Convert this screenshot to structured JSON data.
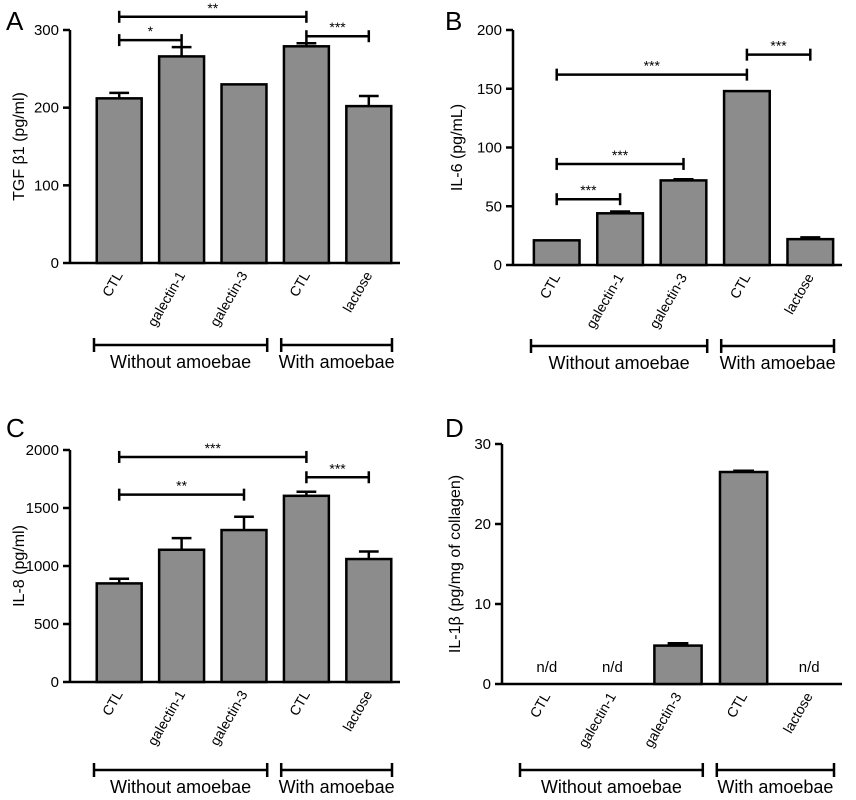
{
  "chart_data": [
    {
      "panel": "A",
      "type": "bar",
      "ylabel": "TGF β1 (pg/ml)",
      "ylim": [
        0,
        300
      ],
      "yticks": [
        "0",
        "100",
        "200",
        "300"
      ],
      "categories": [
        "CTL",
        "galectin-1",
        "galectin-3",
        "CTL",
        "lactose"
      ],
      "values": [
        212,
        266,
        230,
        279,
        202
      ],
      "errors": [
        7,
        12,
        0,
        4,
        13
      ],
      "na_labels": [],
      "groups": [
        {
          "label": "Without amoebae",
          "from": 0,
          "to": 2
        },
        {
          "label": "With amoebae",
          "from": 3,
          "to": 4
        }
      ],
      "significance": [
        {
          "from": 0,
          "to": 1,
          "y": 287,
          "label": "*"
        },
        {
          "from": 0,
          "to": 3,
          "y": 317,
          "label": "**"
        },
        {
          "from": 3,
          "to": 4,
          "y": 292,
          "label": "***"
        }
      ]
    },
    {
      "panel": "B",
      "type": "bar",
      "ylabel": "IL-6 (pg/mL)",
      "ylim": [
        0,
        200
      ],
      "yticks": [
        "0",
        "50",
        "100",
        "150",
        "200"
      ],
      "categories": [
        "CTL",
        "galectin-1",
        "galectin-3",
        "CTL",
        "lactose"
      ],
      "values": [
        21,
        44,
        72,
        148,
        22
      ],
      "errors": [
        0,
        1.5,
        1,
        0,
        1.5
      ],
      "na_labels": [],
      "groups": [
        {
          "label": "Without amoebae",
          "from": 0,
          "to": 2
        },
        {
          "label": "With amoebae",
          "from": 3,
          "to": 4
        }
      ],
      "significance": [
        {
          "from": 0,
          "to": 1,
          "y": 56,
          "label": "***"
        },
        {
          "from": 0,
          "to": 2,
          "y": 86,
          "label": "***"
        },
        {
          "from": 0,
          "to": 3,
          "y": 162,
          "label": "***"
        },
        {
          "from": 3,
          "to": 4,
          "y": 179,
          "label": "***"
        }
      ]
    },
    {
      "panel": "C",
      "type": "bar",
      "ylabel": "IL-8 (pg/ml)",
      "ylim": [
        0,
        2000
      ],
      "yticks": [
        "0",
        "500",
        "1000",
        "1500",
        "2000"
      ],
      "categories": [
        "CTL",
        "galectin-1",
        "galectin-3",
        "CTL",
        "lactose"
      ],
      "values": [
        850,
        1140,
        1310,
        1605,
        1060
      ],
      "errors": [
        40,
        100,
        115,
        35,
        65
      ],
      "na_labels": [],
      "groups": [
        {
          "label": "Without amoebae",
          "from": 0,
          "to": 2
        },
        {
          "label": "With amoebae",
          "from": 3,
          "to": 4
        }
      ],
      "significance": [
        {
          "from": 0,
          "to": 2,
          "y": 1615,
          "label": "**"
        },
        {
          "from": 0,
          "to": 3,
          "y": 1940,
          "label": "***"
        },
        {
          "from": 3,
          "to": 4,
          "y": 1765,
          "label": "***"
        }
      ]
    },
    {
      "panel": "D",
      "type": "bar",
      "ylabel": "IL-1β (pg/mg of collagen)",
      "ylim": [
        0,
        30
      ],
      "yticks": [
        "0",
        "10",
        "20",
        "30"
      ],
      "categories": [
        "CTL",
        "galectin-1",
        "galectin-3",
        "CTL",
        "lactose"
      ],
      "values": [
        0,
        0,
        4.8,
        26.5,
        0
      ],
      "errors": [
        0,
        0,
        0.3,
        0.15,
        0
      ],
      "na_labels": [
        "n/d",
        "n/d",
        "",
        "",
        "n/d"
      ],
      "groups": [
        {
          "label": "Without amoebae",
          "from": 0,
          "to": 2
        },
        {
          "label": "With amoebae",
          "from": 3,
          "to": 4
        }
      ],
      "significance": []
    }
  ]
}
